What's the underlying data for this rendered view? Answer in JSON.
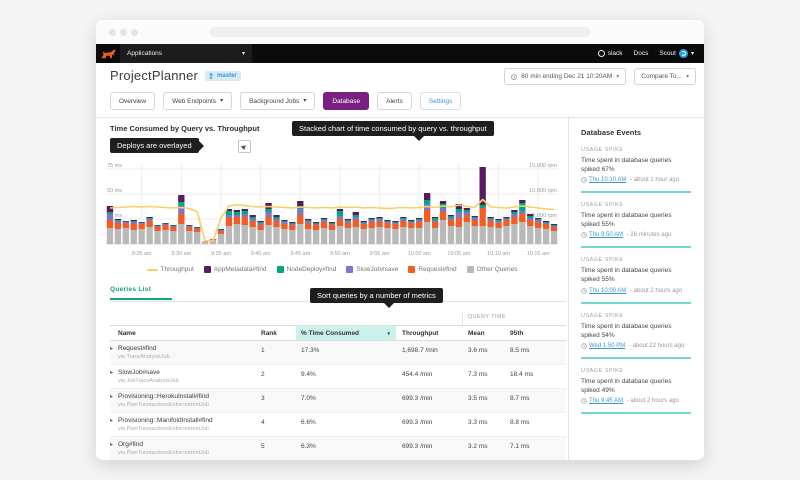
{
  "navbar": {
    "applications_label": "Applications",
    "slack_label": "slack",
    "docs_label": "Docs",
    "user_label": "Scout"
  },
  "icons": {
    "caret_down": "▾",
    "sort_down": "▼",
    "row_expand": "▸"
  },
  "header": {
    "app_title": "ProjectPlanner",
    "branch_badge": "master",
    "time_range": "60 min ending Dec 21 10:20AM",
    "compare_label": "Compare To...",
    "tabs": [
      {
        "label": "Overview"
      },
      {
        "label": "Web Endpoints"
      },
      {
        "label": "Background Jobs"
      },
      {
        "label": "Database"
      },
      {
        "label": "Alerts"
      },
      {
        "label": "Settings"
      }
    ]
  },
  "chart_section": {
    "title": "Time Consumed by Query vs. Throughput",
    "tooltip_main": "Stacked chart of time consumed by query vs. throughput",
    "tooltip_deploys": "Deploys are overlayed"
  },
  "chart_data": {
    "type": "bar",
    "subtype": "stacked-bars-with-line-overlay",
    "title": "Time Consumed by Query vs. Throughput",
    "x_minutes_start": "9:21 am",
    "x_ticks": [
      {
        "index": 4,
        "label": "9:25 am"
      },
      {
        "index": 9,
        "label": "9:30 am"
      },
      {
        "index": 14,
        "label": "9:35 am"
      },
      {
        "index": 19,
        "label": "9:40 am"
      },
      {
        "index": 24,
        "label": "9:45 am"
      },
      {
        "index": 29,
        "label": "9:50 am"
      },
      {
        "index": 34,
        "label": "9:55 am"
      },
      {
        "index": 39,
        "label": "10:00 am"
      },
      {
        "index": 44,
        "label": "10:05 am"
      },
      {
        "index": 49,
        "label": "10:10 am"
      },
      {
        "index": 54,
        "label": "10:15 am"
      }
    ],
    "y_left": {
      "unit": "ms",
      "max": 80,
      "ticks": [
        {
          "label": "75 ms",
          "ms": 75
        },
        {
          "label": "50 ms",
          "ms": 50
        },
        {
          "label": "25 ms",
          "ms": 25
        }
      ]
    },
    "y_right": {
      "unit": "rpm",
      "rpm_per_ms": 200,
      "ticks": [
        {
          "label": "15,000 rpm",
          "rpm": 15000
        },
        {
          "label": "10,000 rpm",
          "rpm": 10000
        },
        {
          "label": "5,000 rpm",
          "rpm": 5000
        }
      ]
    },
    "series": [
      {
        "name": "Other Queries",
        "color": "#b9b9b9",
        "values": [
          16,
          15,
          16,
          14,
          15,
          17,
          13,
          14,
          13,
          20,
          13,
          12,
          2,
          4,
          10,
          18,
          20,
          19,
          17,
          14,
          19,
          17,
          15,
          14,
          20,
          15,
          14,
          16,
          14,
          18,
          16,
          17,
          15,
          16,
          17,
          16,
          15,
          17,
          16,
          16,
          22,
          16,
          24,
          18,
          17,
          22,
          18,
          18,
          17,
          16,
          18,
          20,
          22,
          18,
          16,
          15,
          13
        ]
      },
      {
        "name": "Request#find",
        "color": "#f55b23",
        "values": [
          8,
          6,
          5,
          6,
          5,
          6,
          4,
          5,
          4,
          10,
          4,
          3,
          0.5,
          1,
          3,
          8,
          7,
          8,
          6,
          5,
          8,
          6,
          5,
          5,
          9,
          6,
          5,
          6,
          5,
          7,
          5,
          7,
          5,
          6,
          6,
          5,
          5,
          6,
          5,
          6,
          12,
          6,
          8,
          6,
          9,
          7,
          6,
          18,
          6,
          5,
          6,
          7,
          8,
          6,
          6,
          5,
          4
        ]
      },
      {
        "name": "SlowJob#save",
        "color": "#8276c4",
        "values": [
          6,
          2,
          1,
          2,
          1,
          2,
          1,
          1,
          1,
          8,
          1,
          1,
          0,
          0,
          1,
          3,
          2,
          3,
          2,
          2,
          5,
          2,
          2,
          1,
          6,
          2,
          1,
          2,
          1,
          3,
          2,
          3,
          1,
          2,
          2,
          1,
          1,
          2,
          1,
          2,
          6,
          2,
          4,
          2,
          6,
          3,
          2,
          0,
          2,
          2,
          1,
          3,
          3,
          2,
          2,
          1,
          1
        ]
      },
      {
        "name": "NodeDeploy#find",
        "color": "#00a87e",
        "values": [
          2,
          1,
          0.5,
          1,
          0.5,
          1,
          0.5,
          0.5,
          0.5,
          4,
          0.5,
          0.5,
          0,
          0,
          0.5,
          4,
          3,
          3,
          2,
          1,
          3,
          2,
          1,
          1,
          3,
          1,
          1,
          1,
          1,
          5,
          1,
          2,
          1,
          1,
          1,
          1,
          1,
          1,
          1,
          1,
          4,
          2,
          4,
          2,
          3,
          2,
          1,
          3,
          1,
          1,
          1,
          2,
          8,
          2,
          1,
          1,
          1
        ]
      },
      {
        "name": "AppMetadata#find",
        "color": "#571c60",
        "values": [
          6,
          1,
          0.5,
          1,
          0.5,
          1,
          0.5,
          0.5,
          0.5,
          7,
          0.5,
          0.5,
          0,
          0,
          0.5,
          2,
          2,
          2,
          2,
          1,
          6,
          2,
          1,
          1,
          5,
          1,
          1,
          1,
          1,
          2,
          1,
          3,
          1,
          1,
          1,
          1,
          1,
          1,
          1,
          1,
          7,
          1,
          3,
          1,
          5,
          2,
          1,
          38,
          1,
          1,
          1,
          2,
          3,
          2,
          1,
          1,
          1
        ]
      }
    ],
    "line": {
      "name": "Throughput",
      "color": "#f7cf67",
      "values_rpm": [
        7200,
        7300,
        7400,
        7500,
        7400,
        7500,
        7400,
        7300,
        7200,
        7300,
        7100,
        6500,
        600,
        700,
        5200,
        7600,
        7800,
        7700,
        7500,
        7400,
        7500,
        7400,
        7300,
        7200,
        7400,
        7300,
        7200,
        7300,
        7200,
        7400,
        7300,
        7400,
        7200,
        7300,
        7200,
        7100,
        7200,
        7300,
        7200,
        7300,
        7500,
        7300,
        7600,
        7400,
        7800,
        7500,
        7300,
        8900,
        7400,
        7300,
        7200,
        7400,
        7600,
        7400,
        7200,
        7000,
        6900
      ]
    },
    "legend": [
      {
        "label": "Throughput",
        "color": "#f7cf67",
        "type": "line"
      },
      {
        "label": "AppMetadata#find",
        "color": "#571c60",
        "type": "box"
      },
      {
        "label": "NodeDeploy#find",
        "color": "#00a87e",
        "type": "box"
      },
      {
        "label": "SlowJob#save",
        "color": "#8276c4",
        "type": "box"
      },
      {
        "label": "Request#find",
        "color": "#f55b23",
        "type": "box"
      },
      {
        "label": "Other Queries",
        "color": "#b9b9b9",
        "type": "box"
      }
    ]
  },
  "queries": {
    "tab_label": "Queries List",
    "tooltip": "Sort queries by a number of metrics",
    "group_header": "QUERY TIME",
    "columns": {
      "name": "Name",
      "rank": "Rank",
      "time_consumed": "% Time Consumed",
      "throughput": "Throughput",
      "mean": "Mean",
      "p95": "95th"
    },
    "rows": [
      {
        "name": "Request#find",
        "via": "via TraceAnalysisJob",
        "rank": "1",
        "time_consumed": "17.3%",
        "throughput": "1,698.7 /min",
        "mean": "3.6 ms",
        "p95": "8.5 ms"
      },
      {
        "name": "SlowJob#save",
        "via": "via JobTraceAnalysisJob",
        "rank": "2",
        "time_consumed": "9.4%",
        "throughput": "454.4 /min",
        "mean": "7.3 ms",
        "p95": "18.4 ms"
      },
      {
        "name": "Provisioning::HerokuInstall#find",
        "via": "via PlanTransactionsEnforcementJob",
        "rank": "3",
        "time_consumed": "7.0%",
        "throughput": "699.3 /min",
        "mean": "3.5 ms",
        "p95": "8.7 ms"
      },
      {
        "name": "Provisioning::ManifoldInstall#find",
        "via": "via PlanTransactionsEnforcementJob",
        "rank": "4",
        "time_consumed": "6.6%",
        "throughput": "699.3 /min",
        "mean": "3.3 ms",
        "p95": "8.8 ms"
      },
      {
        "name": "Org#find",
        "via": "via PlanTransactionsEnforcementJob",
        "rank": "5",
        "time_consumed": "6.3%",
        "throughput": "699.3 /min",
        "mean": "3.2 ms",
        "p95": "7.1 ms"
      }
    ]
  },
  "events_panel": {
    "title": "Database Events",
    "events": [
      {
        "type": "USAGE SPIKE",
        "text": "Time spent in database queries spiked 67%",
        "time_link": "Thu 10:10 AM",
        "time_rel": "about 1 hour ago"
      },
      {
        "type": "USAGE SPIKE",
        "text": "Time spent in database queries spiked 55%",
        "time_link": "Thu 9:50 AM",
        "time_rel": "26 minutes ago"
      },
      {
        "type": "USAGE SPIKE",
        "text": "Time spent in database queries spiked 55%",
        "time_link": "Thu 10:00 AM",
        "time_rel": "about 2 hours ago"
      },
      {
        "type": "USAGE SPIKE",
        "text": "Time spent in database queries spiked 54%",
        "time_link": "Wed 1:50 PM",
        "time_rel": "about 22 hours ago"
      },
      {
        "type": "USAGE SPIKE",
        "text": "Time spent in database queries spiked 49%",
        "time_link": "Thu 9:45 AM",
        "time_rel": "about 2 hours ago"
      }
    ]
  },
  "colors": {
    "brand_orange": "#e8611c",
    "accent_purple": "#7a2082",
    "link_blue": "#3e97d1",
    "green": "#12a670",
    "teal_divider": "#74d5d5",
    "tooltip_bg": "#1e1e1e"
  }
}
